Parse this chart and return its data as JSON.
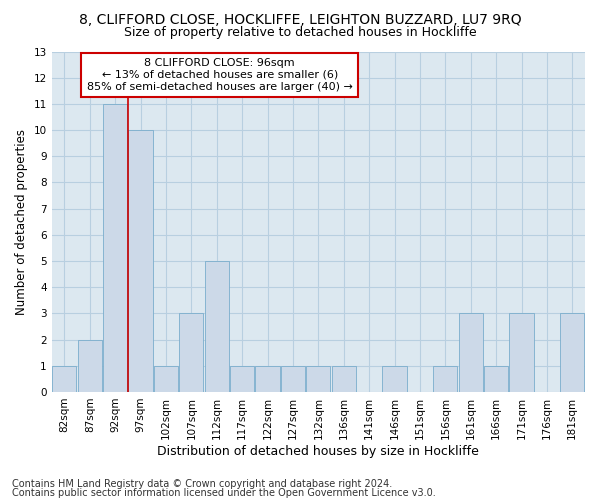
{
  "title1": "8, CLIFFORD CLOSE, HOCKLIFFE, LEIGHTON BUZZARD, LU7 9RQ",
  "title2": "Size of property relative to detached houses in Hockliffe",
  "xlabel": "Distribution of detached houses by size in Hockliffe",
  "ylabel": "Number of detached properties",
  "footer1": "Contains HM Land Registry data © Crown copyright and database right 2024.",
  "footer2": "Contains public sector information licensed under the Open Government Licence v3.0.",
  "bin_labels": [
    "82sqm",
    "87sqm",
    "92sqm",
    "97sqm",
    "102sqm",
    "107sqm",
    "112sqm",
    "117sqm",
    "122sqm",
    "127sqm",
    "132sqm",
    "136sqm",
    "141sqm",
    "146sqm",
    "151sqm",
    "156sqm",
    "161sqm",
    "166sqm",
    "171sqm",
    "176sqm",
    "181sqm"
  ],
  "bar_values": [
    1,
    2,
    11,
    10,
    1,
    3,
    5,
    1,
    1,
    1,
    1,
    1,
    0,
    1,
    0,
    1,
    3,
    1,
    3,
    0,
    3
  ],
  "bar_color": "#ccd9e8",
  "bar_edge_color": "#7aadcc",
  "red_line_x": 2.5,
  "annotation_line1": "8 CLIFFORD CLOSE: 96sqm",
  "annotation_line2": "← 13% of detached houses are smaller (6)",
  "annotation_line3": "85% of semi-detached houses are larger (40) →",
  "annotation_box_color": "#ffffff",
  "annotation_box_edge": "#cc0000",
  "red_line_color": "#cc0000",
  "ylim": [
    0,
    13
  ],
  "yticks": [
    0,
    1,
    2,
    3,
    4,
    5,
    6,
    7,
    8,
    9,
    10,
    11,
    12,
    13
  ],
  "grid_color": "#b8cfe0",
  "bg_color": "#dce8f0",
  "title1_fontsize": 10,
  "title2_fontsize": 9,
  "xlabel_fontsize": 9,
  "ylabel_fontsize": 8.5,
  "tick_fontsize": 7.5,
  "annot_fontsize": 8,
  "footer_fontsize": 7
}
